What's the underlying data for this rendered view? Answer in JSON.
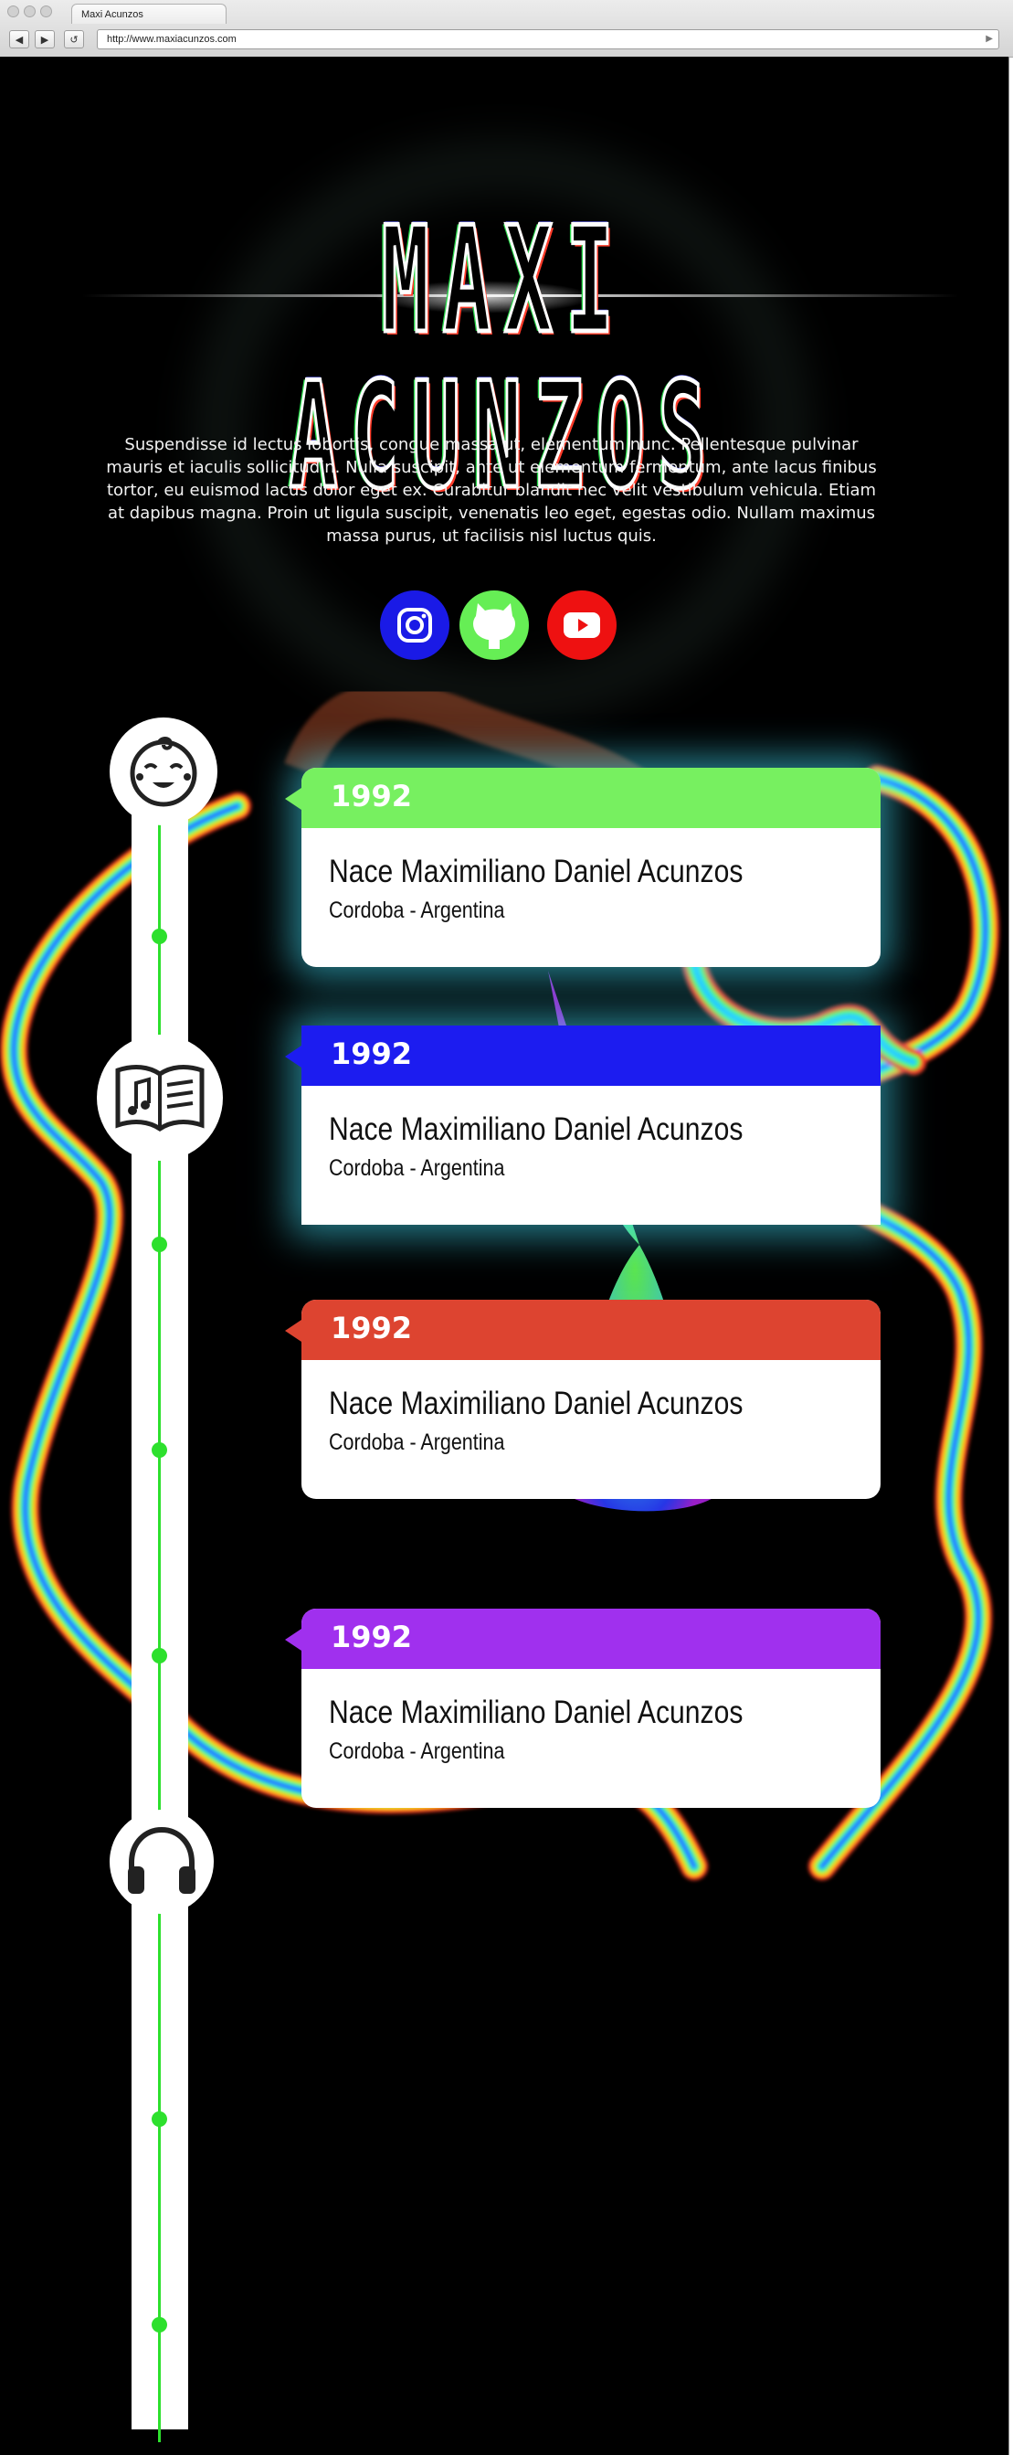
{
  "browser": {
    "tab_title": "Maxi Acunzos",
    "url": "http://www.maxiacunzos.com",
    "back": "◀",
    "forward": "▶",
    "reload": "↺",
    "go": "▶"
  },
  "hero": {
    "title": "MAXI ACUNZOS",
    "intro": "Suspendisse id lectus lobortis, congue massa ut, elementum nunc. Pellentesque pulvinar mauris et iaculis sollicitudin. Nulla suscipit, ante ut elementum fermentum, ante lacus finibus tortor, eu euismod lacus dolor eget ex. Curabitur blandit nec velit vestibulum vehicula. Etiam at dapibus magna. Proin ut ligula suscipit, venenatis leo eget, egestas odio. Nullam maximus massa purus, ut facilisis nisl luctus quis."
  },
  "social": [
    {
      "icon": "instagram-icon",
      "color": "#1a1ae6"
    },
    {
      "icon": "github-icon",
      "color": "#66ee55"
    },
    {
      "icon": "youtube-icon",
      "color": "#ee1111"
    }
  ],
  "timeline": {
    "icons": [
      "baby-face-icon",
      "music-book-icon",
      "headphones-icon"
    ],
    "events": [
      {
        "year": "1992",
        "title": "Nace Maximiliano Daniel Acunzos",
        "place": "Cordoba - Argentina",
        "color": "#77f060"
      },
      {
        "year": "1992",
        "title": "Nace Maximiliano Daniel Acunzos",
        "place": "Cordoba - Argentina",
        "color": "#1c1cf0"
      },
      {
        "year": "1992",
        "title": "Nace Maximiliano Daniel Acunzos",
        "place": "Cordoba - Argentina",
        "color": "#dd4430"
      },
      {
        "year": "1992",
        "title": "Nace Maximiliano Daniel Acunzos",
        "place": "Cordoba - Argentina",
        "color": "#a030ee"
      }
    ],
    "accent": "#2de02d"
  }
}
